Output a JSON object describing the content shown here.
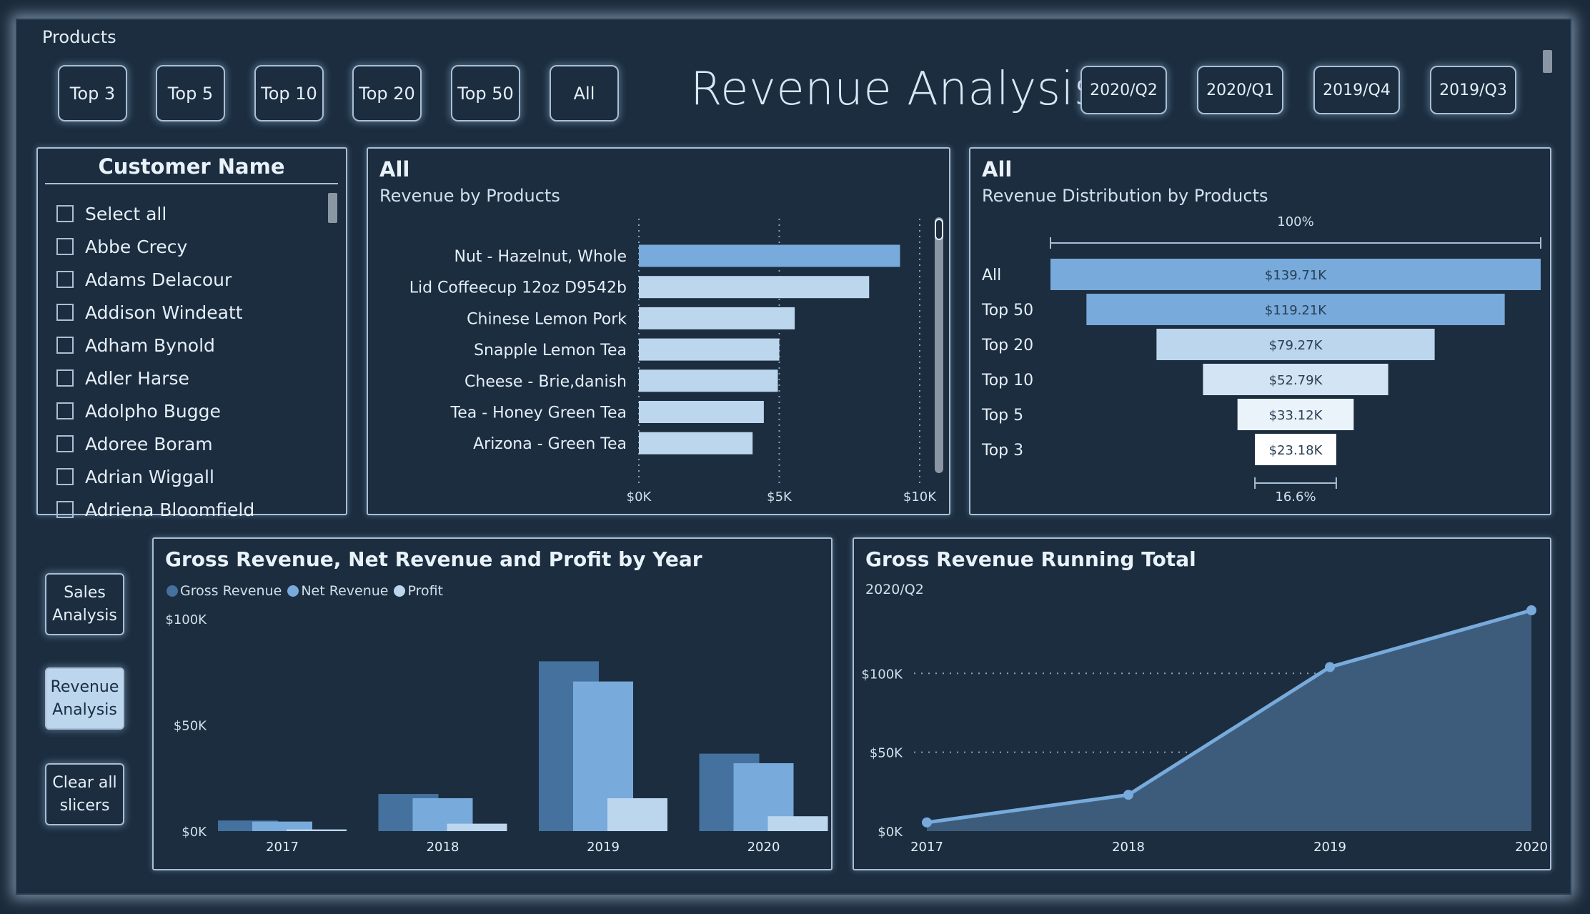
{
  "header": {
    "products_label": "Products",
    "title": "Revenue Analysis",
    "product_buttons": [
      "Top 3",
      "Top 5",
      "Top 10",
      "Top 20",
      "Top 50",
      "All"
    ],
    "period_buttons": [
      "2020/Q2",
      "2020/Q1",
      "2019/Q4",
      "2019/Q3"
    ]
  },
  "customer_slicer": {
    "title": "Customer Name",
    "items": [
      "Select all",
      "Abbe Crecy",
      "Adams Delacour",
      "Addison Windeatt",
      "Adham Bynold",
      "Adler Harse",
      "Adolpho Bugge",
      "Adoree Boram",
      "Adrian Wiggall",
      "Adriena Bloomfield"
    ]
  },
  "nav": {
    "sales": "Sales Analysis",
    "revenue": "Revenue Analysis",
    "clear": "Clear all slicers"
  },
  "colors": {
    "background": "#1b2d3f",
    "border": "#a9bfd6",
    "dark_blue": "#44719e",
    "mid_blue": "#78aadb",
    "light_blue": "#bcd6ee",
    "area_fill": "#3d5c7c"
  },
  "bar_panel": {
    "title": "All",
    "subtitle": "Revenue by Products"
  },
  "funnel_panel": {
    "title": "All",
    "subtitle": "Revenue Distribution by Products",
    "top_pct": "100%",
    "bottom_pct": "16.6%"
  },
  "column_panel": {
    "title": "Gross Revenue, Net Revenue and Profit by Year"
  },
  "running_panel": {
    "title": "Gross Revenue Running Total",
    "subtitle": "2020/Q2"
  },
  "chart_data": [
    {
      "type": "bar",
      "orientation": "horizontal",
      "title": "Revenue by Products",
      "categories": [
        "Nut - Hazelnut, Whole",
        "Lid Coffeecup 12oz D9542b",
        "Chinese Lemon Pork",
        "Snapple Lemon Tea",
        "Cheese - Brie,danish",
        "Tea - Honey Green Tea",
        "Arizona - Green Tea"
      ],
      "values": [
        9300,
        8200,
        5550,
        5000,
        4950,
        4450,
        4050
      ],
      "xlim": [
        0,
        10000
      ],
      "ticks": [
        "$0K",
        "$5K",
        "$10K"
      ],
      "grid": true
    },
    {
      "type": "funnel",
      "title": "Revenue Distribution by Products",
      "categories": [
        "All",
        "Top 50",
        "Top 20",
        "Top 10",
        "Top 5",
        "Top 3"
      ],
      "values": [
        139.71,
        119.21,
        79.27,
        52.79,
        33.12,
        23.18
      ],
      "labels": [
        "$139.71K",
        "$119.21K",
        "$79.27K",
        "$52.79K",
        "$33.12K",
        "$23.18K"
      ]
    },
    {
      "type": "bar",
      "title": "Gross Revenue, Net Revenue and Profit by Year",
      "categories": [
        "2017",
        "2018",
        "2019",
        "2020"
      ],
      "series": [
        {
          "name": "Gross Revenue",
          "values": [
            5000,
            17500,
            80000,
            36500
          ]
        },
        {
          "name": "Net Revenue",
          "values": [
            4500,
            15500,
            70500,
            32000
          ]
        },
        {
          "name": "Profit",
          "values": [
            800,
            3500,
            15500,
            7000
          ]
        }
      ],
      "ylim": [
        0,
        100000
      ],
      "ticks": [
        "$0K",
        "$50K",
        "$100K"
      ]
    },
    {
      "type": "area",
      "title": "Gross Revenue Running Total",
      "x": [
        "2017",
        "2018",
        "2019",
        "2020"
      ],
      "values": [
        5500,
        23000,
        104000,
        140000
      ],
      "ylim": [
        0,
        140000
      ],
      "ticks": [
        "$0K",
        "$50K",
        "$100K"
      ],
      "grid": true
    }
  ]
}
